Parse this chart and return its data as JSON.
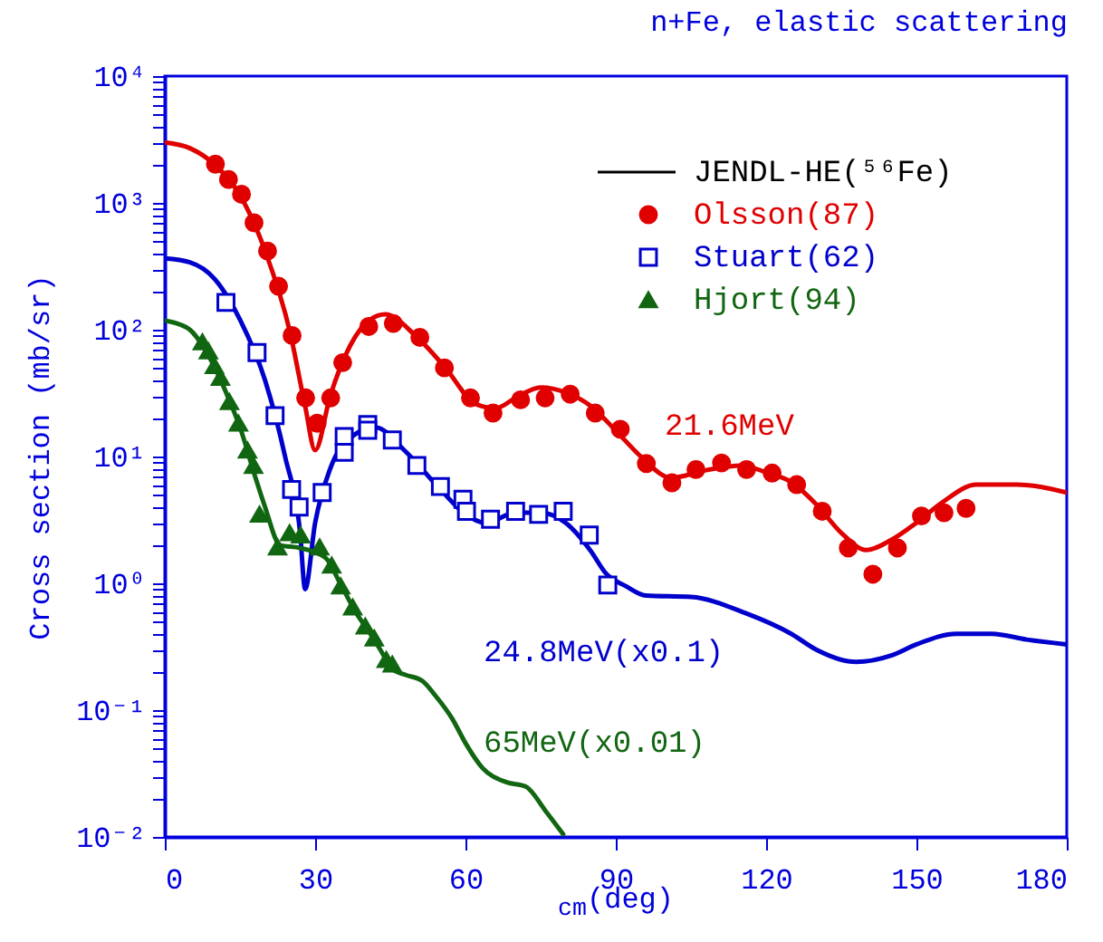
{
  "chart_data": {
    "type": "scatter",
    "title": "n+Fe, elastic scattering",
    "xlabel": "$_{cm}$(deg)",
    "ylabel": "Cross section (mb/sr)",
    "log": true,
    "grid": false,
    "legend": "top right",
    "xlim": [
      0,
      180
    ],
    "xticks": [
      0,
      30,
      60,
      90,
      120,
      150,
      180
    ],
    "ylim": [
      0.01,
      10000
    ],
    "yticks": [
      {
        "value": 0.01,
        "label": "10⁻²"
      },
      {
        "value": 0.02,
        "label": null
      },
      {
        "value": 0.03,
        "label": null
      },
      {
        "value": 0.04,
        "label": null
      },
      {
        "value": 0.05,
        "label": null
      },
      {
        "value": 0.06,
        "label": null
      },
      {
        "value": 0.07,
        "label": null
      },
      {
        "value": 0.08,
        "label": null
      },
      {
        "value": 0.09,
        "label": null
      },
      {
        "value": 0.1,
        "label": "10⁻¹"
      },
      {
        "value": 0.2,
        "label": null
      },
      {
        "value": 0.3,
        "label": null
      },
      {
        "value": 0.4,
        "label": null
      },
      {
        "value": 0.5,
        "label": null
      },
      {
        "value": 0.6,
        "label": null
      },
      {
        "value": 0.7,
        "label": null
      },
      {
        "value": 0.8,
        "label": null
      },
      {
        "value": 0.9,
        "label": null
      },
      {
        "value": 1,
        "label": "10⁰"
      },
      {
        "value": 2,
        "label": null
      },
      {
        "value": 3,
        "label": null
      },
      {
        "value": 4,
        "label": null
      },
      {
        "value": 5,
        "label": null
      },
      {
        "value": 6,
        "label": null
      },
      {
        "value": 7,
        "label": null
      },
      {
        "value": 8,
        "label": null
      },
      {
        "value": 9,
        "label": null
      },
      {
        "value": 10,
        "label": "10¹"
      },
      {
        "value": 20,
        "label": null
      },
      {
        "value": 30,
        "label": null
      },
      {
        "value": 40,
        "label": null
      },
      {
        "value": 50,
        "label": null
      },
      {
        "value": 60,
        "label": null
      },
      {
        "value": 70,
        "label": null
      },
      {
        "value": 80,
        "label": null
      },
      {
        "value": 90,
        "label": null
      },
      {
        "value": 100,
        "label": "10²"
      },
      {
        "value": 200,
        "label": null
      },
      {
        "value": 300,
        "label": null
      },
      {
        "value": 400,
        "label": null
      },
      {
        "value": 500,
        "label": null
      },
      {
        "value": 600,
        "label": null
      },
      {
        "value": 700,
        "label": null
      },
      {
        "value": 800,
        "label": null
      },
      {
        "value": 900,
        "label": null
      },
      {
        "value": 1000,
        "label": "10³"
      },
      {
        "value": 2000,
        "label": null
      },
      {
        "value": 3000,
        "label": null
      },
      {
        "value": 4000,
        "label": null
      },
      {
        "value": 5000,
        "label": null
      },
      {
        "value": 6000,
        "label": null
      },
      {
        "value": 7000,
        "label": null
      },
      {
        "value": 8000,
        "label": null
      },
      {
        "value": 9000,
        "label": null
      },
      {
        "value": 10000,
        "label": "10⁴"
      }
    ],
    "annotations": [
      "JENDL-HE(⁵⁶Fe)",
      "21.6MeV",
      "24.8MeV(x0.1)",
      "65MeV(x0.01)"
    ],
    "series": [
      {
        "type": "line",
        "color": "#e00000",
        "x": [
          0,
          5,
          10,
          15,
          20,
          25,
          28,
          30,
          33,
          37,
          41,
          44,
          50,
          56,
          62,
          66,
          70,
          75,
          80,
          85,
          90,
          95,
          101,
          108,
          115,
          120,
          125,
          130,
          135,
          140,
          145,
          150,
          155,
          162,
          170,
          180
        ],
        "values": [
          3000,
          2700,
          2000,
          1150,
          420,
          95,
          25,
          11.2,
          30,
          75,
          120,
          132,
          90,
          50,
          26,
          24,
          29,
          35,
          32,
          25,
          16,
          10,
          6.8,
          7.8,
          8.5,
          7.5,
          6.3,
          4.2,
          2.5,
          1.83,
          2.2,
          3,
          4.3,
          6,
          6,
          5.2
        ]
      },
      {
        "type": "line",
        "color": "#0000cc",
        "x": [
          0,
          5,
          10,
          15,
          20,
          24,
          27,
          28,
          30,
          33,
          38,
          42,
          48,
          55,
          60,
          64,
          70,
          75,
          80,
          85,
          88,
          92,
          96,
          105,
          116,
          125,
          130,
          138,
          145,
          150,
          158,
          165,
          172,
          180
        ],
        "values": [
          365,
          340,
          250,
          120,
          40,
          10,
          2.5,
          0.9,
          3,
          8,
          15,
          17,
          11,
          5.5,
          3.5,
          3.0,
          3.6,
          3.6,
          3.0,
          1.8,
          1.2,
          0.95,
          0.8,
          0.78,
          0.58,
          0.4,
          0.3,
          0.24,
          0.27,
          0.33,
          0.4,
          0.4,
          0.36,
          0.33
        ]
      },
      {
        "type": "line",
        "color": "#116611",
        "x": [
          0,
          3,
          5,
          8,
          10,
          13,
          15,
          18,
          20,
          23,
          27,
          32,
          35,
          38,
          41,
          43,
          45.4,
          48,
          51.4,
          54,
          57.4,
          60,
          63.4,
          68.2,
          72,
          76,
          79.5
        ],
        "values": [
          118,
          110,
          100,
          70,
          50,
          27,
          17,
          7,
          4,
          2.0,
          1.9,
          1.6,
          1.0,
          0.6,
          0.4,
          0.3,
          0.21,
          0.19,
          0.17,
          0.13,
          0.085,
          0.055,
          0.035,
          0.027,
          0.025,
          0.016,
          0.0105
        ]
      },
      {
        "name": "Olsson(87)",
        "color": "#e00000",
        "marker": "circle",
        "x": [
          10.1,
          12.7,
          15.3,
          17.8,
          20.5,
          22.7,
          25.4,
          28.1,
          30.4,
          33.1,
          35.5,
          40.7,
          45.6,
          50.9,
          55.8,
          61.0,
          65.5,
          71.0,
          75.9,
          80.9,
          85.9,
          90.9,
          96.1,
          101.2,
          106.0,
          111.1,
          116.1,
          121.2,
          126.1,
          131.2,
          136.4,
          141.3,
          146.2,
          151.0,
          155.5,
          159.9
        ],
        "values": [
          2020,
          1530,
          1170,
          697,
          417,
          220,
          90,
          29,
          18.3,
          29,
          55,
          106,
          112,
          87,
          50,
          29,
          22,
          28,
          29,
          31,
          22,
          16.4,
          8.8,
          6.2,
          7.9,
          8.9,
          7.9,
          7.4,
          6.0,
          3.7,
          1.9,
          1.18,
          1.9,
          3.4,
          3.6,
          3.9
        ]
      },
      {
        "name": "Stuart(62)",
        "color": "#0000cc",
        "marker": "square",
        "x": [
          12.2,
          18.4,
          22.0,
          25.3,
          26.8,
          31.4,
          35.8,
          35.8,
          40.5,
          40.5,
          45.4,
          50.3,
          55.0,
          59.5,
          60.2,
          65.0,
          70.0,
          74.6,
          79.5,
          84.7,
          88.4
        ],
        "values": [
          164,
          66,
          21,
          5.5,
          4.0,
          5.2,
          14.4,
          10.8,
          17.9,
          16.1,
          13.5,
          8.5,
          5.8,
          4.6,
          3.7,
          3.2,
          3.7,
          3.5,
          3.7,
          2.4,
          0.97
        ]
      },
      {
        "name": "Hjort(94)",
        "color": "#116611",
        "marker": "triangle",
        "x": [
          7.5,
          8.7,
          9.9,
          11.1,
          12.9,
          14.7,
          16.5,
          17.7,
          18.9,
          22.5,
          24.9,
          27.1,
          30.9,
          33.3,
          35.1,
          37.5,
          40.0,
          41.8,
          44.2,
          45.4
        ],
        "values": [
          80,
          68,
          52,
          42,
          27,
          18.3,
          11.2,
          8.5,
          3.5,
          1.93,
          2.5,
          2.4,
          1.93,
          1.39,
          0.95,
          0.65,
          0.46,
          0.37,
          0.25,
          0.23
        ]
      }
    ]
  }
}
